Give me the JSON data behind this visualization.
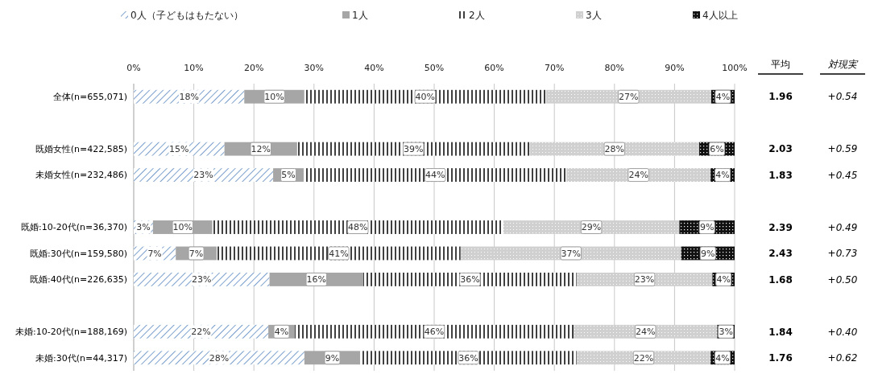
{
  "chart_data": {
    "type": "bar",
    "orientation": "horizontal",
    "stacked": true,
    "categories": [
      "全体(n=655,071)",
      null,
      "既婚女性(n=422,585)",
      "未婚女性(n=232,486)",
      null,
      "既婚:10-20代(n=36,370)",
      "既婚:30代(n=159,580)",
      "既婚:40代(n=226,635)",
      null,
      "未婚:10-20代(n=188,169)",
      "未婚:30代(n=44,317)"
    ],
    "series": [
      {
        "name": "0人（子どもはもたない）",
        "color": "#4f81bd",
        "values": [
          18.4,
          null,
          15.1,
          23.2,
          null,
          3.2,
          7.0,
          22.6,
          null,
          22.4,
          28.4
        ],
        "value_labels": [
          "18%",
          null,
          "15%",
          "23%",
          null,
          "3%",
          "7%",
          "23%",
          null,
          "22%",
          "28%"
        ]
      },
      {
        "name": "1人",
        "color": "#a6a6a6",
        "values": [
          10.0,
          null,
          12.1,
          5.1,
          null,
          9.9,
          6.8,
          15.6,
          null,
          4.4,
          9.3
        ],
        "value_labels": [
          "10%",
          null,
          "12%",
          "5%",
          null,
          "10%",
          "7%",
          "16%",
          null,
          "4%",
          "9%"
        ]
      },
      {
        "name": "2人",
        "color": "#000000",
        "values": [
          40.2,
          null,
          38.7,
          43.7,
          null,
          48.4,
          40.6,
          35.5,
          null,
          46.4,
          36.0
        ],
        "value_labels": [
          "40%",
          null,
          "39%",
          "44%",
          null,
          "48%",
          "41%",
          "36%",
          null,
          "46%",
          "36%"
        ]
      },
      {
        "name": "3人",
        "color": "#d0d0d0",
        "values": [
          27.5,
          null,
          28.2,
          24.0,
          null,
          29.3,
          36.7,
          22.6,
          null,
          23.9,
          22.3
        ],
        "value_labels": [
          "27%",
          null,
          "28%",
          "24%",
          null,
          "29%",
          "37%",
          "23%",
          null,
          "24%",
          "22%"
        ]
      },
      {
        "name": "4人以上",
        "color": "#111111",
        "values": [
          3.9,
          null,
          5.9,
          4.0,
          null,
          9.2,
          8.9,
          3.7,
          null,
          2.9,
          4.0
        ],
        "value_labels": [
          "4%",
          null,
          "6%",
          "4%",
          null,
          "9%",
          "9%",
          "4%",
          null,
          "3%",
          "4%"
        ]
      }
    ],
    "xlim": [
      0,
      100
    ],
    "xticks": [
      {
        "value": 0,
        "label": "0%"
      },
      {
        "value": 10,
        "label": "10%"
      },
      {
        "value": 20,
        "label": "20%"
      },
      {
        "value": 30,
        "label": "30%"
      },
      {
        "value": 40,
        "label": "40%"
      },
      {
        "value": 50,
        "label": "50%"
      },
      {
        "value": 60,
        "label": "60%"
      },
      {
        "value": 70,
        "label": "70%"
      },
      {
        "value": 80,
        "label": "80%"
      },
      {
        "value": 90,
        "label": "90%"
      },
      {
        "value": 100,
        "label": "100%"
      }
    ],
    "grid": "x",
    "legend": "top",
    "annotations": [
      "平均",
      "対現実",
      "1.96",
      "+0.54",
      "2.03",
      "+0.59",
      "1.83",
      "+0.45",
      "2.39",
      "+0.49",
      "2.43",
      "+0.73",
      "1.68",
      "+0.50",
      "1.84",
      "+0.40",
      "1.76",
      "+0.62"
    ]
  }
}
